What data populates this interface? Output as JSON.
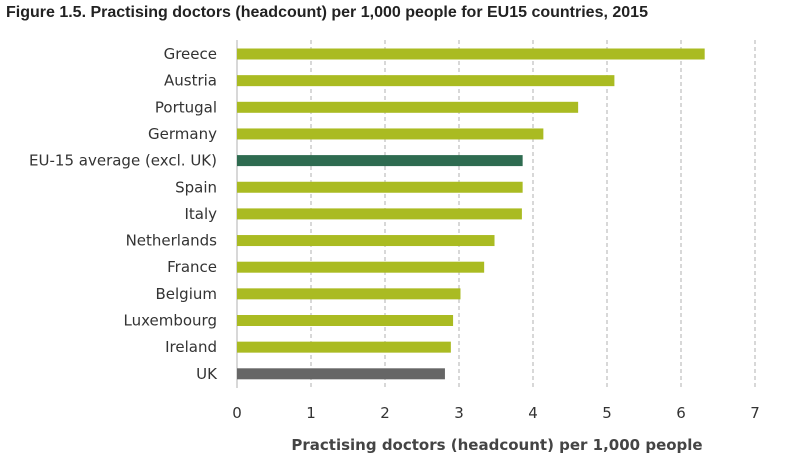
{
  "chart_data": {
    "type": "bar",
    "orientation": "horizontal",
    "title": "Figure 1.5. Practising doctors (headcount) per 1,000 people for EU15 countries, 2015",
    "xlabel": "Practising doctors  (headcount) per 1,000 people",
    "ylabel": "",
    "xlim": [
      0,
      7
    ],
    "xticks": [
      "0",
      "1",
      "2",
      "3",
      "4",
      "5",
      "6",
      "7"
    ],
    "grid": "vertical dashed",
    "categories": [
      "Greece",
      "Austria",
      "Portugal",
      "Germany",
      "EU-15 average (excl. UK)",
      "Spain",
      "Italy",
      "Netherlands",
      "France",
      "Belgium",
      "Luxembourg",
      "Ireland",
      "UK"
    ],
    "values": [
      6.32,
      5.1,
      4.61,
      4.14,
      3.86,
      3.86,
      3.85,
      3.48,
      3.34,
      3.02,
      2.92,
      2.89,
      2.81
    ],
    "colors": [
      "#aabb22",
      "#aabb22",
      "#aabb22",
      "#aabb22",
      "#2e6b50",
      "#aabb22",
      "#aabb22",
      "#aabb22",
      "#aabb22",
      "#aabb22",
      "#aabb22",
      "#aabb22",
      "#666666"
    ]
  }
}
